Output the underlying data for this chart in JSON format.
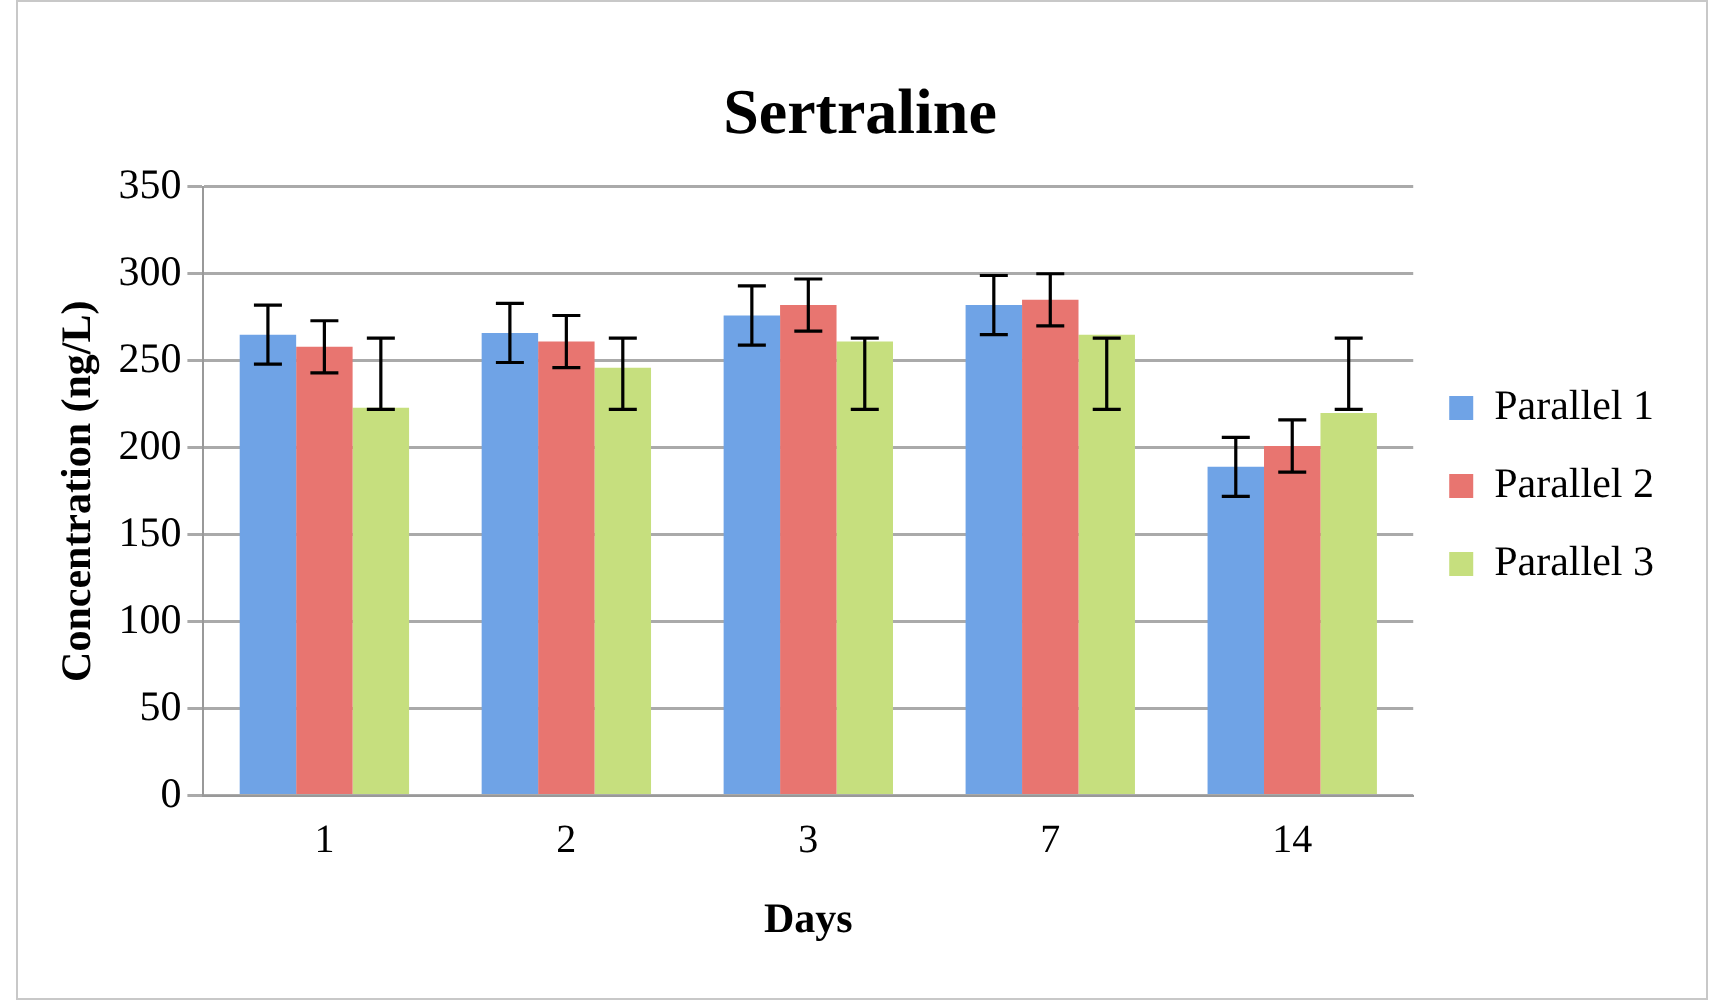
{
  "chart_data": {
    "type": "bar",
    "title": "Sertraline",
    "xlabel": "Days",
    "ylabel": "Concentration (ng/L)",
    "categories": [
      "1",
      "2",
      "3",
      "7",
      "14"
    ],
    "series": [
      {
        "name": "Parallel 1",
        "color": "#6fa3e6",
        "values": [
          265,
          266,
          276,
          282,
          189
        ],
        "errors": [
          17,
          17,
          17,
          17,
          17
        ]
      },
      {
        "name": "Parallel 2",
        "color": "#e87570",
        "values": [
          258,
          261,
          282,
          285,
          201
        ],
        "errors": [
          15,
          15,
          15,
          15,
          15
        ]
      },
      {
        "name": "Parallel 3",
        "color": "#c6df7e",
        "values": [
          223,
          246,
          261,
          265,
          220
        ],
        "errors": [
          [
            222,
            263
          ],
          [
            222,
            263
          ],
          [
            222,
            263
          ],
          [
            222,
            263
          ],
          [
            222,
            263
          ]
        ]
      }
    ],
    "ylim": [
      0,
      350
    ],
    "yticks": [
      0,
      50,
      100,
      150,
      200,
      250,
      300,
      350
    ],
    "grid": "y",
    "legend": "right"
  }
}
